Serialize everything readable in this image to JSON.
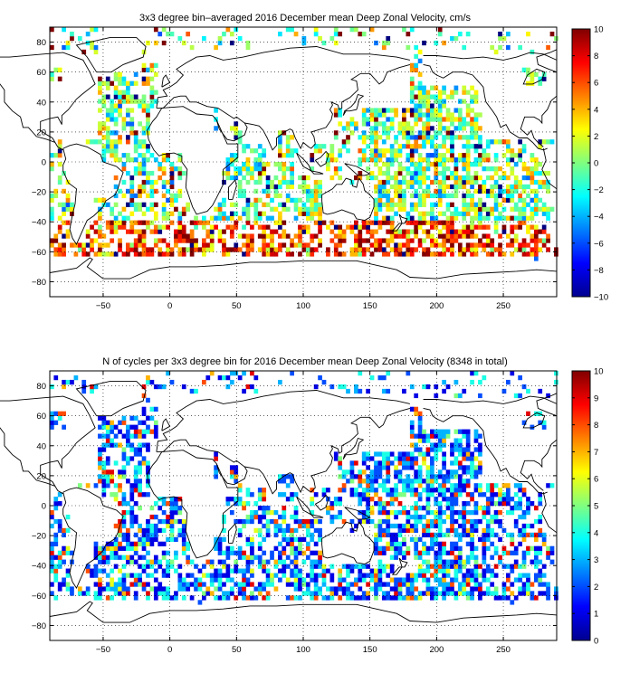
{
  "chart_data": [
    {
      "type": "heatmap",
      "title": "3x3 degree bin–averaged 2016 December mean Deep Zonal Velocity, cm/s",
      "xlabel": "",
      "ylabel": "",
      "xlim": [
        -90,
        290
      ],
      "ylim": [
        -90,
        90
      ],
      "x_ticks": [
        -50,
        0,
        50,
        100,
        150,
        200,
        250
      ],
      "y_ticks": [
        80,
        60,
        40,
        20,
        0,
        -20,
        -40,
        -60,
        -80
      ],
      "x_tick_labels": [
        "−50",
        "0",
        "50",
        "100",
        "150",
        "200",
        "250"
      ],
      "y_tick_labels": [
        "80",
        "60",
        "40",
        "20",
        "0",
        "−20",
        "−40",
        "−60",
        "−80"
      ],
      "grid": true,
      "bin_size_deg": 3,
      "colormap": "jet",
      "colorbar": {
        "min": -10,
        "max": 10,
        "ticks": [
          10,
          8,
          6,
          4,
          2,
          0,
          -2,
          -4,
          -6,
          -8,
          -10
        ],
        "tick_labels": [
          "10",
          "8",
          "6",
          "4",
          "2",
          "0",
          "−2",
          "−4",
          "−6",
          "−8",
          "−10"
        ]
      },
      "values_note_seed": 11
    },
    {
      "type": "heatmap",
      "title": "N of cycles per 3x3 degree bin for 2016 December mean Deep Zonal Velocity (8348 in total)",
      "xlabel": "",
      "ylabel": "",
      "xlim": [
        -90,
        290
      ],
      "ylim": [
        -90,
        90
      ],
      "x_ticks": [
        -50,
        0,
        50,
        100,
        150,
        200,
        250
      ],
      "y_ticks": [
        80,
        60,
        40,
        20,
        0,
        -20,
        -40,
        -60,
        -80
      ],
      "x_tick_labels": [
        "−50",
        "0",
        "50",
        "100",
        "150",
        "200",
        "250"
      ],
      "y_tick_labels": [
        "80",
        "60",
        "40",
        "20",
        "0",
        "−20",
        "−40",
        "−60",
        "−80"
      ],
      "grid": true,
      "bin_size_deg": 3,
      "colormap": "jet",
      "total_cycles": 8348,
      "colorbar": {
        "min": 0,
        "max": 10,
        "ticks": [
          10,
          9,
          8,
          7,
          6,
          5,
          4,
          3,
          2,
          1,
          0
        ],
        "tick_labels": [
          "10",
          "9",
          "8",
          "7",
          "6",
          "5",
          "4",
          "3",
          "2",
          "1",
          "0"
        ]
      },
      "values_note_seed": 29
    }
  ]
}
